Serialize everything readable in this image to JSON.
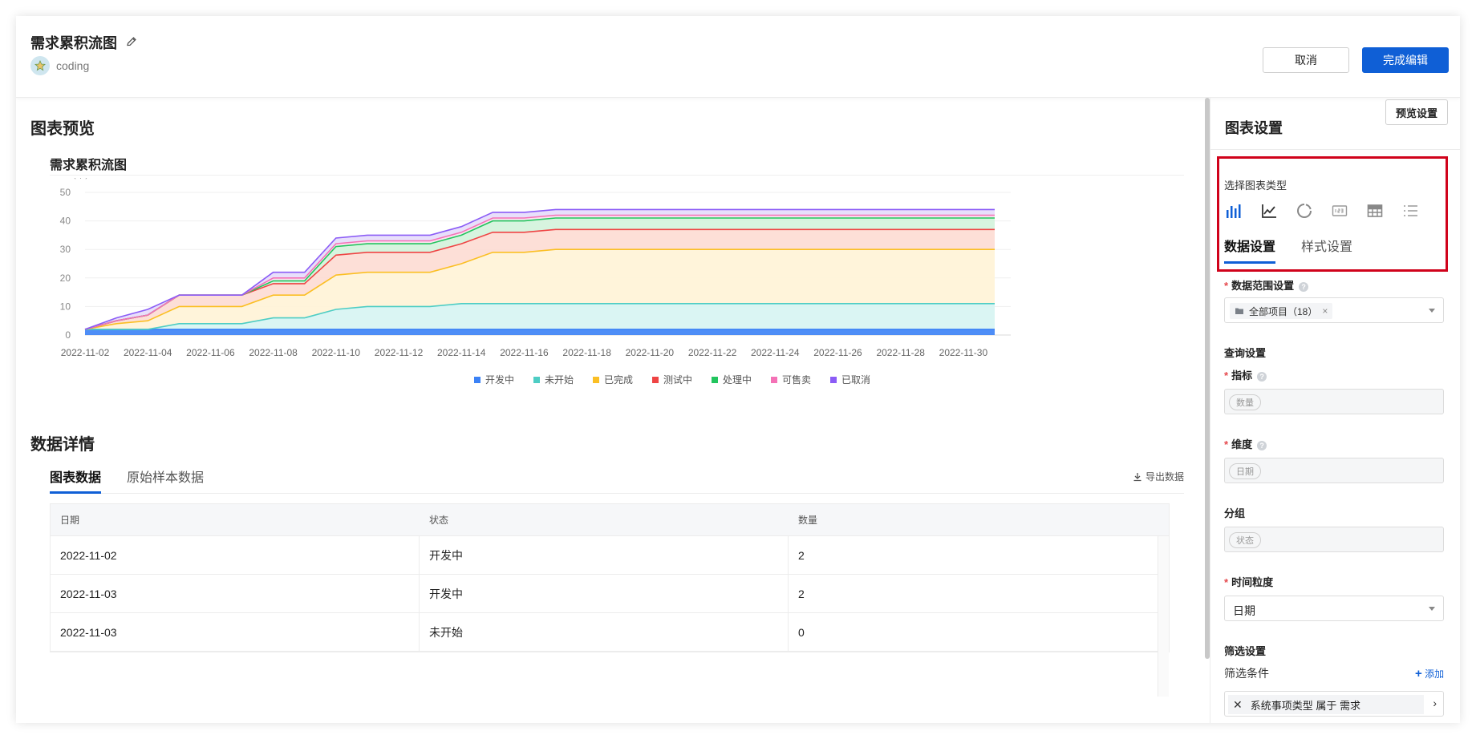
{
  "header": {
    "title": "需求累积流图",
    "owner": "coding",
    "cancel_label": "取消",
    "done_label": "完成编辑"
  },
  "left": {
    "preview_title": "图表预览",
    "chart_title": "需求累积流图",
    "details_title": "数据详情",
    "tabs": [
      {
        "label": "图表数据",
        "active": true
      },
      {
        "label": "原始样本数据",
        "active": false
      }
    ],
    "export_label": "导出数据",
    "table": {
      "headers": [
        "日期",
        "状态",
        "数量"
      ],
      "rows": [
        [
          "2022-11-02",
          "开发中",
          "2"
        ],
        [
          "2022-11-03",
          "开发中",
          "2"
        ],
        [
          "2022-11-03",
          "未开始",
          "0"
        ]
      ]
    }
  },
  "chart_data": {
    "type": "area",
    "ylabel": "（个）",
    "ylim": [
      0,
      50
    ],
    "yticks": [
      0,
      10,
      20,
      30,
      40,
      50
    ],
    "x": [
      "2022-11-02",
      "2022-11-03",
      "2022-11-04",
      "2022-11-05",
      "2022-11-06",
      "2022-11-07",
      "2022-11-08",
      "2022-11-09",
      "2022-11-10",
      "2022-11-11",
      "2022-11-12",
      "2022-11-13",
      "2022-11-14",
      "2022-11-15",
      "2022-11-16",
      "2022-11-17",
      "2022-11-18",
      "2022-11-19",
      "2022-11-20",
      "2022-11-21",
      "2022-11-22",
      "2022-11-23",
      "2022-11-24",
      "2022-11-25",
      "2022-11-26",
      "2022-11-27",
      "2022-11-28",
      "2022-11-29",
      "2022-11-30",
      "2022-12-01"
    ],
    "xticks": [
      "2022-11-02",
      "2022-11-04",
      "2022-11-06",
      "2022-11-08",
      "2022-11-10",
      "2022-11-12",
      "2022-11-14",
      "2022-11-16",
      "2022-11-18",
      "2022-11-20",
      "2022-11-22",
      "2022-11-24",
      "2022-11-26",
      "2022-11-28",
      "2022-11-30"
    ],
    "legend_position": "bottom",
    "series": [
      {
        "name": "开发中",
        "color": "#3b82f6",
        "fill": "#3b82f6",
        "values": [
          2,
          2,
          2,
          2,
          2,
          2,
          2,
          2,
          2,
          2,
          2,
          2,
          2,
          2,
          2,
          2,
          2,
          2,
          2,
          2,
          2,
          2,
          2,
          2,
          2,
          2,
          2,
          2,
          2,
          2
        ]
      },
      {
        "name": "未开始",
        "color": "#4ecdc4",
        "fill": "#d6f4f2",
        "values": [
          0,
          0,
          0,
          2,
          2,
          2,
          4,
          4,
          7,
          8,
          8,
          8,
          9,
          9,
          9,
          9,
          9,
          9,
          9,
          9,
          9,
          9,
          9,
          9,
          9,
          9,
          9,
          9,
          9,
          9
        ]
      },
      {
        "name": "已完成",
        "color": "#fbbf24",
        "fill": "#fff3d6",
        "values": [
          0,
          2,
          3,
          6,
          6,
          6,
          8,
          8,
          12,
          12,
          12,
          12,
          14,
          18,
          18,
          19,
          19,
          19,
          19,
          19,
          19,
          19,
          19,
          19,
          19,
          19,
          19,
          19,
          19,
          19
        ]
      },
      {
        "name": "测试中",
        "color": "#ef4444",
        "fill": "#fddcd3",
        "values": [
          0,
          1,
          2,
          4,
          4,
          4,
          4,
          4,
          7,
          7,
          7,
          7,
          7,
          7,
          7,
          7,
          7,
          7,
          7,
          7,
          7,
          7,
          7,
          7,
          7,
          7,
          7,
          7,
          7,
          7
        ]
      },
      {
        "name": "处理中",
        "color": "#22c55e",
        "fill": "#d3f3dc",
        "values": [
          0,
          0,
          0,
          0,
          0,
          0,
          1,
          1,
          3,
          3,
          3,
          3,
          3,
          4,
          4,
          4,
          4,
          4,
          4,
          4,
          4,
          4,
          4,
          4,
          4,
          4,
          4,
          4,
          4,
          4
        ]
      },
      {
        "name": "可售卖",
        "color": "#f472b6",
        "fill": "#fce0ee",
        "values": [
          0,
          0,
          0,
          0,
          0,
          0,
          1,
          1,
          1,
          1,
          1,
          1,
          1,
          1,
          1,
          1,
          1,
          1,
          1,
          1,
          1,
          1,
          1,
          1,
          1,
          1,
          1,
          1,
          1,
          1
        ]
      },
      {
        "name": "已取消",
        "color": "#8b5cf6",
        "fill": "#e6dcfb",
        "values": [
          0,
          1,
          2,
          0,
          0,
          0,
          2,
          2,
          2,
          2,
          2,
          2,
          2,
          2,
          2,
          2,
          2,
          2,
          2,
          2,
          2,
          2,
          2,
          2,
          2,
          2,
          2,
          2,
          2,
          2
        ]
      }
    ]
  },
  "right": {
    "title": "图表设置",
    "preview_settings_label": "预览设置",
    "choose_type_label": "选择图表类型",
    "chart_types": [
      "bar-chart-icon",
      "line-chart-icon",
      "ring-chart-icon",
      "number-card-icon",
      "table-chart-icon",
      "list-chart-icon"
    ],
    "tabs": [
      {
        "label": "数据设置",
        "active": true
      },
      {
        "label": "样式设置",
        "active": false
      }
    ],
    "range_label": "数据范围设置",
    "range_chip": "全部项目（18）",
    "query_label": "查询设置",
    "metric_label": "指标",
    "metric_value": "数量",
    "dimension_label": "维度",
    "dimension_value": "日期",
    "group_label": "分组",
    "group_value": "状态",
    "granularity_label": "时间粒度",
    "granularity_value": "日期",
    "filter_section_label": "筛选设置",
    "filter_condition_label": "筛选条件",
    "add_label": "添加",
    "filter_value": "系统事项类型 属于 需求"
  }
}
